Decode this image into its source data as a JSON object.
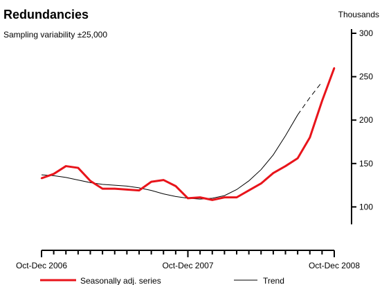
{
  "chart_data": {
    "type": "line",
    "title": "Redundancies",
    "subtitle": "Sampling variability ±25,000",
    "ylabel": "Thousands",
    "ylim": [
      50,
      300
    ],
    "y_ticks": [
      100,
      150,
      200,
      250,
      300
    ],
    "y_axis_side": "right",
    "x_tick_labels": [
      {
        "label": "Oct-Dec 2006",
        "index": 0
      },
      {
        "label": "Oct-Dec 2007",
        "index": 12
      },
      {
        "label": "Oct-Dec 2008",
        "index": 24
      }
    ],
    "x_count": 26,
    "series": [
      {
        "name": "Seasonally adj. series",
        "color": "#e8141b",
        "style": "solid-thick",
        "values": [
          133,
          138,
          147,
          145,
          130,
          121,
          121,
          120,
          119,
          129,
          131,
          124,
          110,
          111,
          108,
          111,
          111,
          119,
          127,
          139,
          147,
          156,
          180,
          222,
          260
        ]
      },
      {
        "name": "Trend",
        "color": "#000000",
        "style": "thin",
        "solid_count": 22,
        "values": [
          137,
          136,
          134,
          131,
          128,
          126,
          125,
          124,
          122,
          119,
          115,
          112,
          110,
          109,
          110,
          113,
          120,
          130,
          143,
          160,
          182,
          206,
          226,
          244
        ]
      }
    ],
    "legend_placement": "bottom",
    "grid": false
  }
}
